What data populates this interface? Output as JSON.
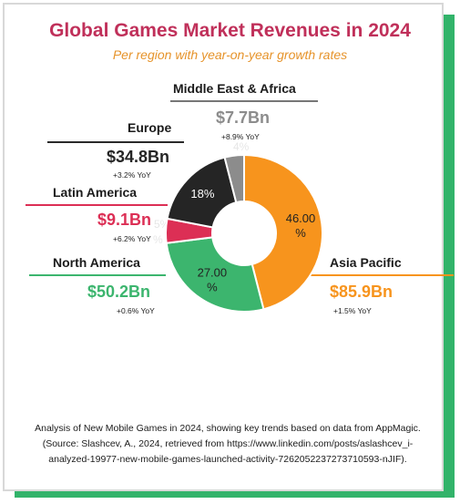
{
  "title": "Global Games Market Revenues in 2024",
  "subtitle": "Per region with year-on-year growth rates",
  "footer": {
    "line1": "Analysis of New Mobile Games in 2024, showing key trends based on data from AppMagic.",
    "line2": "(Source: Slashcev, A., 2024, retrieved from https://www.linkedin.com/posts/aslashcev_i-",
    "line3": "analyzed-19977-new-mobile-games-launched-activity-7262052237273710593-nJIF)."
  },
  "regions": {
    "mea": {
      "name": "Middle East & Africa",
      "value": "$7.7Bn",
      "yoy": "+8.9% YoY"
    },
    "europe": {
      "name": "Europe",
      "value": "$34.8Bn",
      "yoy": "+3.2% YoY"
    },
    "latam": {
      "name": "Latin America",
      "value": "$9.1Bn",
      "yoy": "+6.2% YoY"
    },
    "na": {
      "name": "North America",
      "value": "$50.2Bn",
      "yoy": "+0.6% YoY"
    },
    "apac": {
      "name": "Asia Pacific",
      "value": "$85.9Bn",
      "yoy": "+1.5% YoY"
    }
  },
  "ghost_labels": {
    "mea_pct": "4%",
    "latam_pct_a": "5%",
    "latam_pct_b": "%"
  },
  "colors": {
    "title": "#c0305a",
    "subtitle": "#e6932a",
    "asia_pacific": "#f7941d",
    "north_america": "#3cb56e",
    "latin_america": "#dc2f55",
    "europe": "#252525",
    "middle_east_africa": "#8c8c8c",
    "frame_accent": "#32b36a"
  },
  "chart_data": {
    "type": "pie",
    "donut": true,
    "categories": [
      "Asia Pacific",
      "North America",
      "Latin America",
      "Europe",
      "Middle East & Africa"
    ],
    "values": [
      46.0,
      27.0,
      5.0,
      18.0,
      4.0
    ],
    "slice_labels": [
      "46.00\n%",
      "27.00\n%",
      "",
      "18%",
      ""
    ],
    "colors": [
      "#f7941d",
      "#3cb56e",
      "#dc2f55",
      "#252525",
      "#8c8c8c"
    ]
  }
}
